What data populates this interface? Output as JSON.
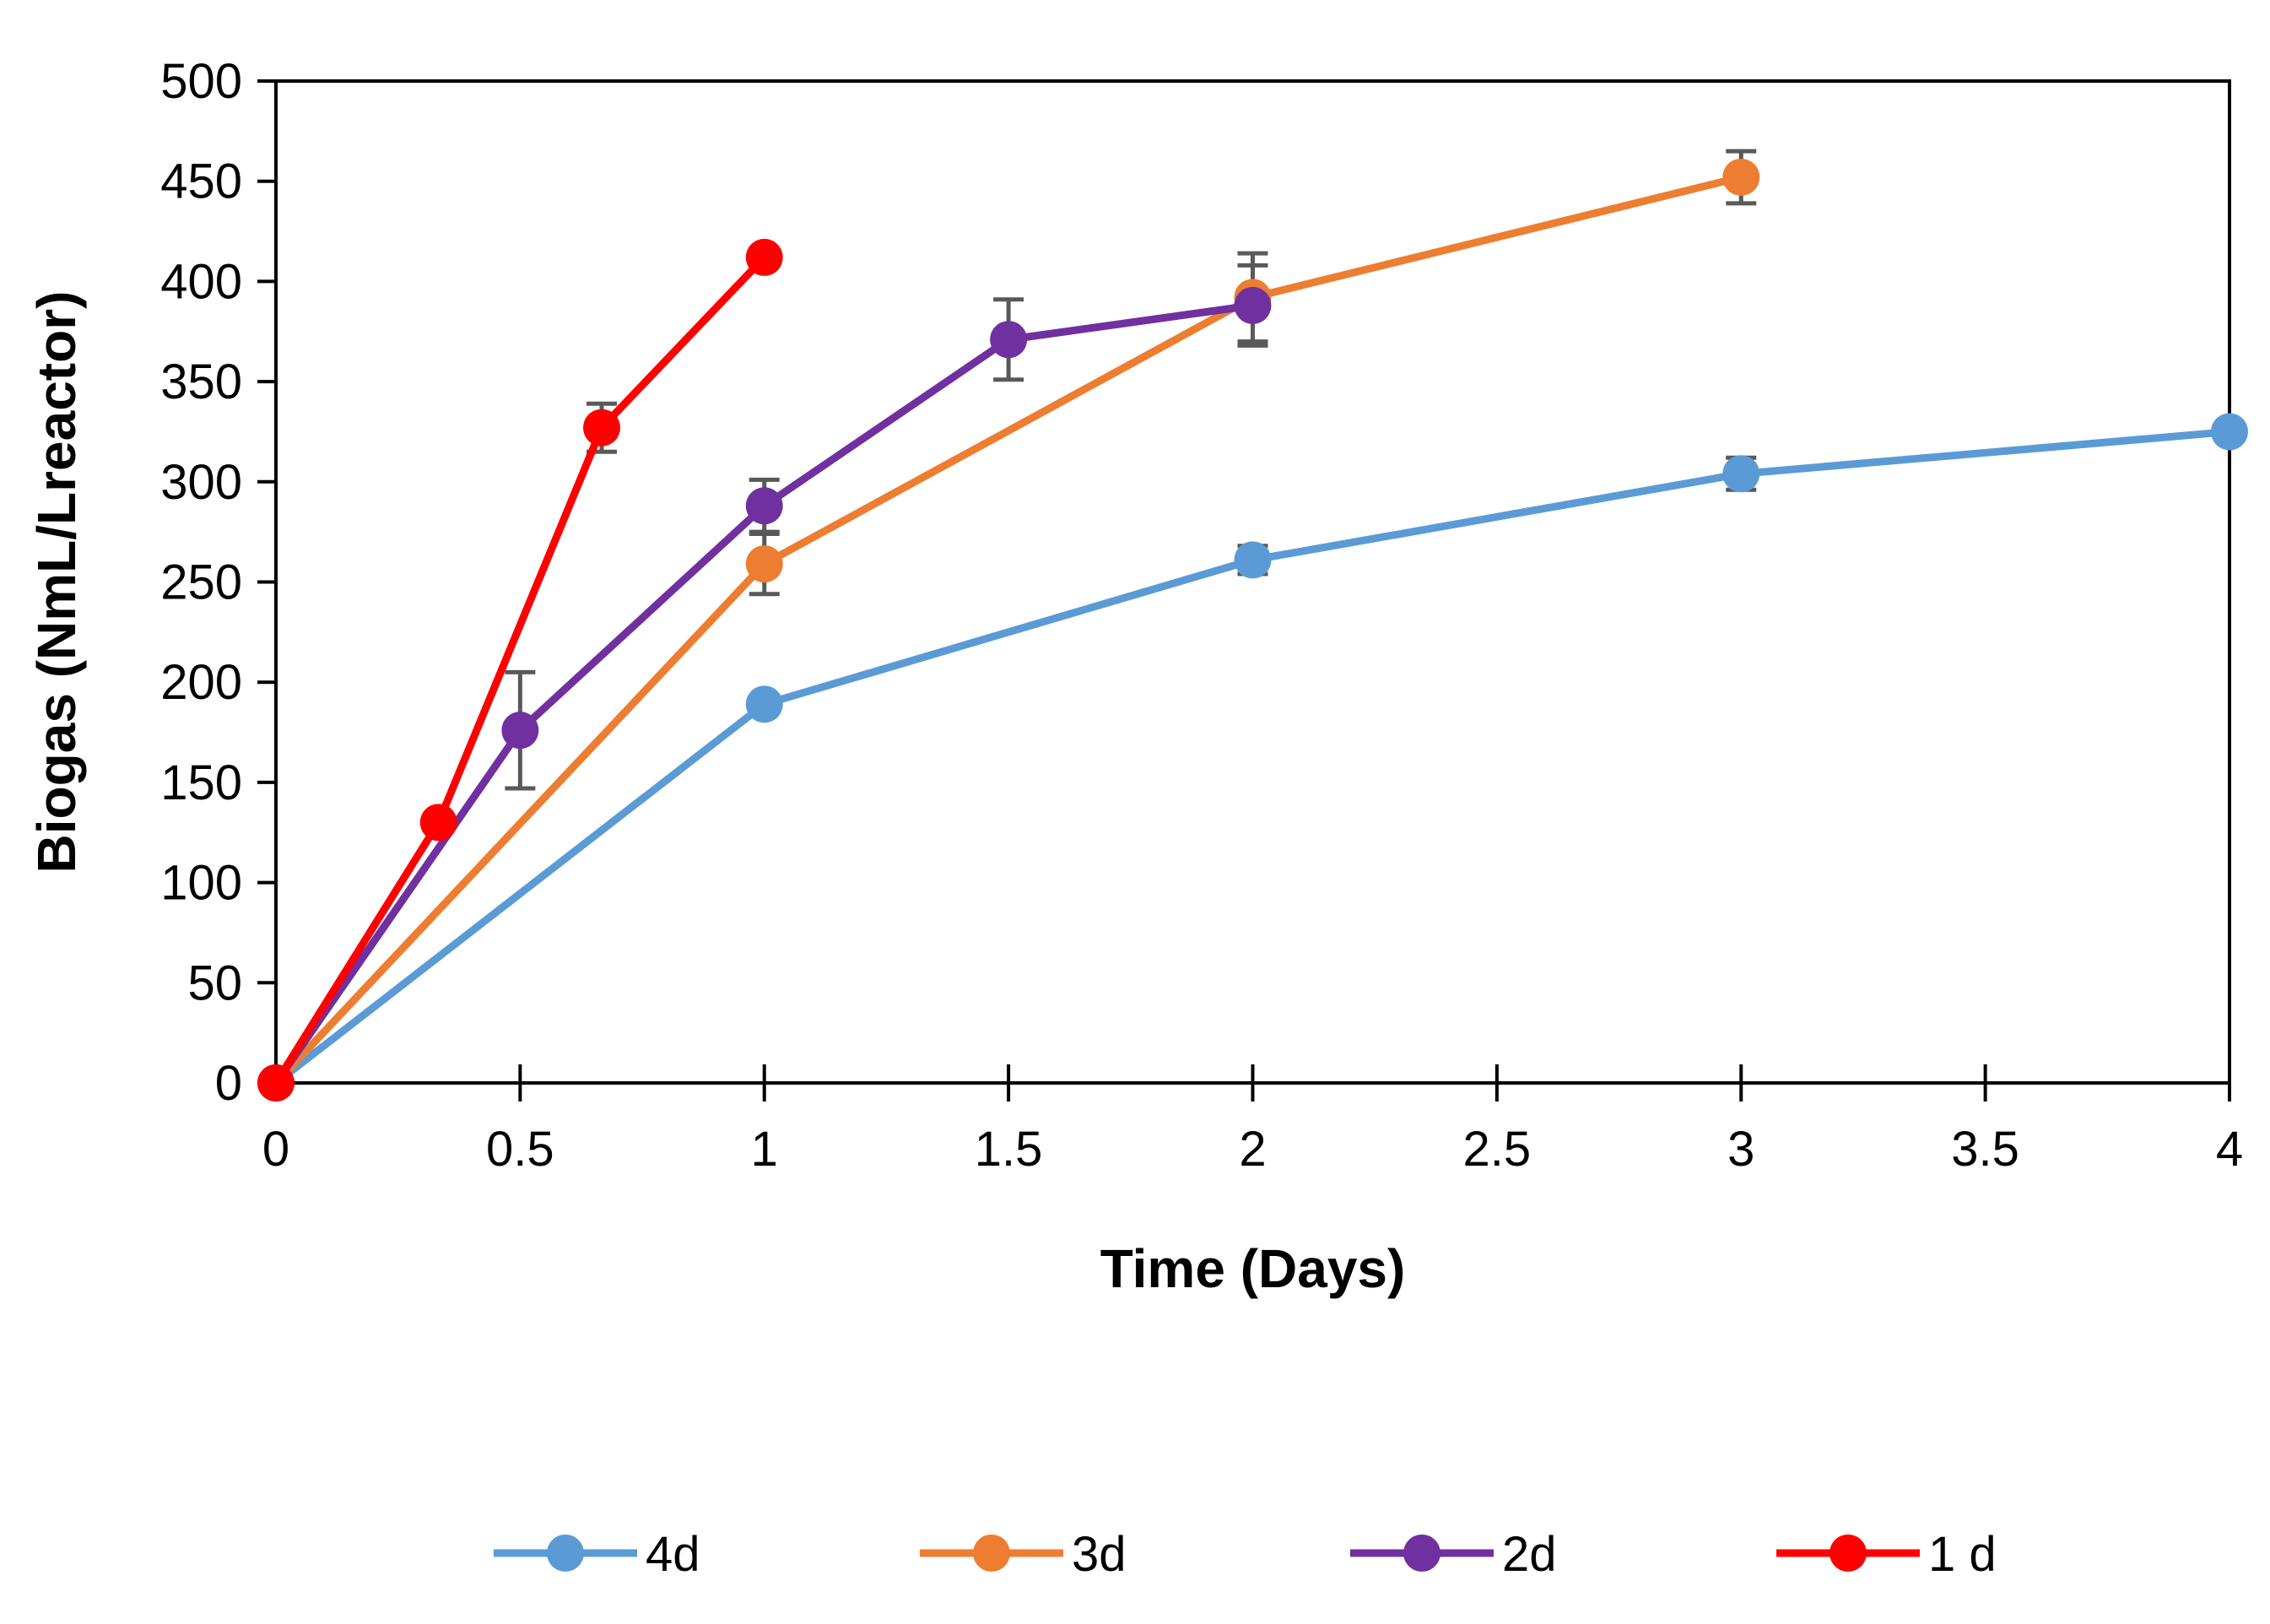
{
  "chart_data": {
    "type": "line",
    "title": "",
    "xlabel": "Time (Days)",
    "ylabel": "Biogas (NmL/Lreactor)",
    "xlim": [
      0,
      4
    ],
    "ylim": [
      0,
      500
    ],
    "xticks": [
      0,
      0.5,
      1,
      1.5,
      2,
      2.5,
      3,
      3.5,
      4
    ],
    "yticks": [
      0,
      50,
      100,
      150,
      200,
      250,
      300,
      350,
      400,
      450,
      500
    ],
    "xtick_labels": [
      "0",
      "0.5",
      "1",
      "1.5",
      "2",
      "2.5",
      "3",
      "3.5",
      "4"
    ],
    "ytick_labels": [
      "0",
      "50",
      "100",
      "150",
      "200",
      "250",
      "300",
      "350",
      "400",
      "450",
      "500"
    ],
    "grid": false,
    "legend_position": "bottom",
    "series": [
      {
        "name": "4d",
        "color": "#5b9bd5",
        "x": [
          0,
          1,
          2,
          3,
          4
        ],
        "y": [
          0,
          189,
          261,
          304,
          325
        ],
        "err": [
          0,
          0,
          7,
          8,
          0
        ]
      },
      {
        "name": "3d",
        "color": "#ed7d31",
        "x": [
          0,
          1,
          2,
          3
        ],
        "y": [
          0,
          259,
          392,
          452
        ],
        "err": [
          0,
          15,
          22,
          13
        ]
      },
      {
        "name": "2d",
        "color": "#7030a0",
        "x": [
          0,
          0.5,
          1,
          1.5,
          2
        ],
        "y": [
          0,
          176,
          288,
          371,
          388
        ],
        "err": [
          0,
          29,
          13,
          20,
          20
        ]
      },
      {
        "name": "1 d",
        "color": "#ff0000",
        "x": [
          0,
          0.333,
          0.667,
          1
        ],
        "y": [
          0,
          130,
          327,
          412
        ],
        "err": [
          0,
          0,
          12,
          0
        ]
      }
    ]
  }
}
